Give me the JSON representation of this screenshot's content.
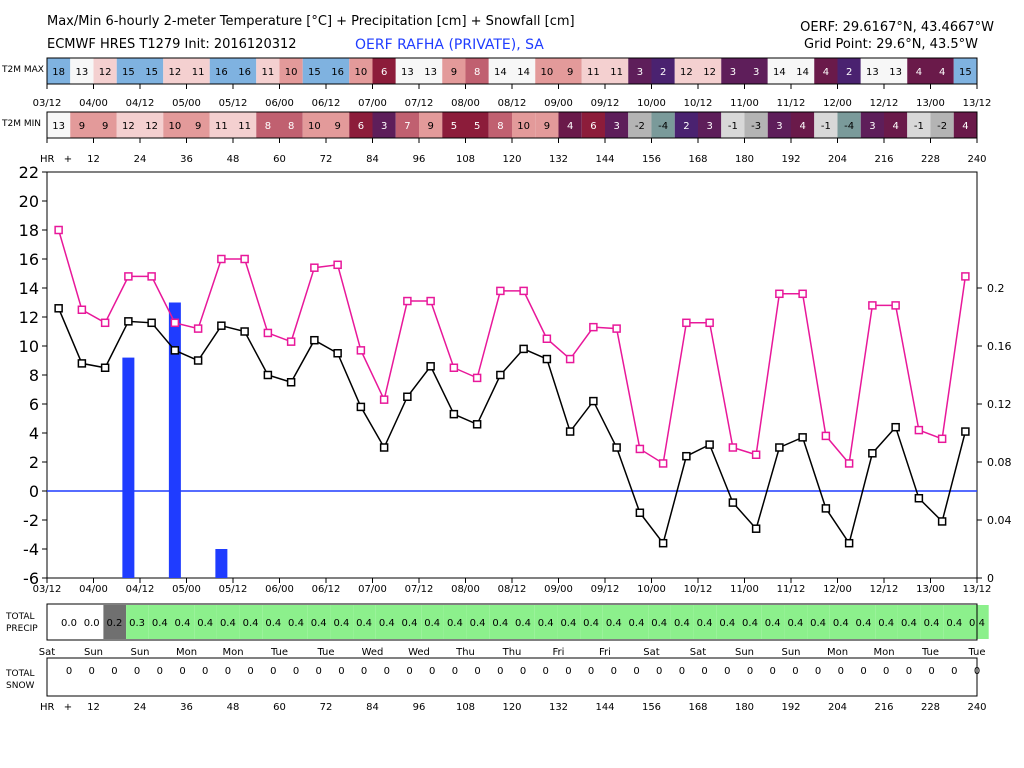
{
  "header": {
    "title": "Max/Min 6-hourly 2-meter Temperature [°C] + Precipitation [cm] + Snowfall [cm]",
    "model": "ECMWF HRES T1279 Init: 2016120312",
    "station": "OERF RAFHA (PRIVATE), SA",
    "station_coords": "OERF: 29.6167°N, 43.4667°W",
    "grid_point": "Grid Point: 29.6°N, 43.5°W"
  },
  "row_labels": {
    "tmax": "T2M MAX",
    "tmin": "T2M MIN",
    "hr": "HR",
    "total_precip": "TOTAL\nPRECIP",
    "total_snow": "TOTAL\nSNOW"
  },
  "date_labels": [
    "03/12",
    "04/00",
    "04/12",
    "05/00",
    "05/12",
    "06/00",
    "06/12",
    "07/00",
    "07/12",
    "08/00",
    "08/12",
    "09/00",
    "09/12",
    "10/00",
    "10/12",
    "11/00",
    "11/12",
    "12/00",
    "12/12",
    "13/00",
    "13/12"
  ],
  "hour_labels": [
    "+",
    "12",
    "24",
    "36",
    "48",
    "60",
    "72",
    "84",
    "96",
    "108",
    "120",
    "132",
    "144",
    "156",
    "168",
    "180",
    "192",
    "204",
    "216",
    "228",
    "240"
  ],
  "day_labels": [
    "Sat",
    "Sun",
    "Sun",
    "Mon",
    "Mon",
    "Tue",
    "Tue",
    "Wed",
    "Wed",
    "Thu",
    "Thu",
    "Fri",
    "Fri",
    "Sat",
    "Sat",
    "Sun",
    "Sun",
    "Mon",
    "Mon",
    "Tue",
    "Tue"
  ],
  "tmax_row": [
    18,
    13,
    12,
    15,
    15,
    12,
    11,
    16,
    16,
    11,
    10,
    15,
    16,
    10,
    6,
    13,
    13,
    9,
    8,
    14,
    14,
    10,
    9,
    11,
    11,
    3,
    2,
    12,
    12,
    3,
    3,
    14,
    14,
    4,
    2,
    13,
    13,
    4,
    4,
    15
  ],
  "tmin_row": [
    13,
    9,
    9,
    12,
    12,
    10,
    9,
    11,
    11,
    8,
    8,
    10,
    9,
    6,
    3,
    7,
    9,
    5,
    5,
    8,
    10,
    9,
    4,
    6,
    3,
    -2,
    -4,
    2,
    3,
    -1,
    -3,
    3,
    4,
    -1,
    -4,
    3,
    4,
    -1,
    -2,
    4
  ],
  "precip_row": [
    "0.0",
    "0.0",
    "0.2",
    "0.3",
    "0.4",
    "0.4",
    "0.4",
    "0.4",
    "0.4",
    "0.4",
    "0.4",
    "0.4",
    "0.4",
    "0.4",
    "0.4",
    "0.4",
    "0.4",
    "0.4",
    "0.4",
    "0.4",
    "0.4",
    "0.4",
    "0.4",
    "0.4",
    "0.4",
    "0.4",
    "0.4",
    "0.4",
    "0.4",
    "0.4",
    "0.4",
    "0.4",
    "0.4",
    "0.4",
    "0.4",
    "0.4",
    "0.4",
    "0.4",
    "0.4",
    "0.4",
    "0.4"
  ],
  "snow_row": [
    "0",
    "0",
    "0",
    "0",
    "0",
    "0",
    "0",
    "0",
    "0",
    "0",
    "0",
    "0",
    "0",
    "0",
    "0",
    "0",
    "0",
    "0",
    "0",
    "0",
    "0",
    "0",
    "0",
    "0",
    "0",
    "0",
    "0",
    "0",
    "0",
    "0",
    "0",
    "0",
    "0",
    "0",
    "0",
    "0",
    "0",
    "0",
    "0",
    "0",
    "0"
  ],
  "colors": {
    "tmax_line": "#e8189a",
    "tmin_line": "#000000",
    "precip_bar": "#1f3cff",
    "zero_line": "#1f3cff",
    "precip_fill": "#8cf08c",
    "precip_dry": "#707070"
  },
  "chart_data": {
    "type": "line",
    "x": [
      3,
      9,
      15,
      21,
      27,
      33,
      39,
      45,
      51,
      57,
      63,
      69,
      75,
      81,
      87,
      93,
      99,
      105,
      111,
      117,
      123,
      129,
      135,
      141,
      147,
      153,
      159,
      165,
      171,
      177,
      183,
      189,
      195,
      201,
      207,
      213,
      219,
      225,
      231,
      237
    ],
    "series": [
      {
        "name": "T2M MAX",
        "values": [
          18,
          12.5,
          11.6,
          14.8,
          14.8,
          11.6,
          11.2,
          16,
          16,
          10.9,
          10.3,
          15.4,
          15.6,
          9.7,
          6.3,
          13.1,
          13.1,
          8.5,
          7.8,
          13.8,
          13.8,
          10.5,
          9.1,
          11.3,
          11.2,
          2.9,
          1.9,
          11.6,
          11.6,
          3,
          2.5,
          13.6,
          13.6,
          3.8,
          1.9,
          12.8,
          12.8,
          4.2,
          3.6,
          14.8
        ]
      },
      {
        "name": "T2M MIN",
        "values": [
          12.6,
          8.8,
          8.5,
          11.7,
          11.6,
          9.7,
          9,
          11.4,
          11,
          8,
          7.5,
          10.4,
          9.5,
          5.8,
          3,
          6.5,
          8.6,
          5.3,
          4.6,
          8,
          9.8,
          9.1,
          4.1,
          6.2,
          3,
          -1.5,
          -3.6,
          2.4,
          3.2,
          -0.8,
          -2.6,
          3,
          3.7,
          -1.2,
          -3.6,
          2.6,
          4.4,
          -0.5,
          -2.1,
          4.1
        ]
      }
    ],
    "precip_bars": {
      "x": [
        21,
        33,
        45
      ],
      "values": [
        0.152,
        0.19,
        0.02
      ]
    },
    "ylim": [
      -6,
      22
    ],
    "yticks": [
      -6,
      -4,
      -2,
      0,
      2,
      4,
      6,
      8,
      10,
      12,
      14,
      16,
      18,
      20,
      22
    ],
    "y2lim": [
      0,
      0.28
    ],
    "y2ticks": [
      "0",
      "0.04",
      "0.08",
      "0.12",
      "0.16",
      "0.2"
    ],
    "xlim": [
      0,
      240
    ]
  }
}
